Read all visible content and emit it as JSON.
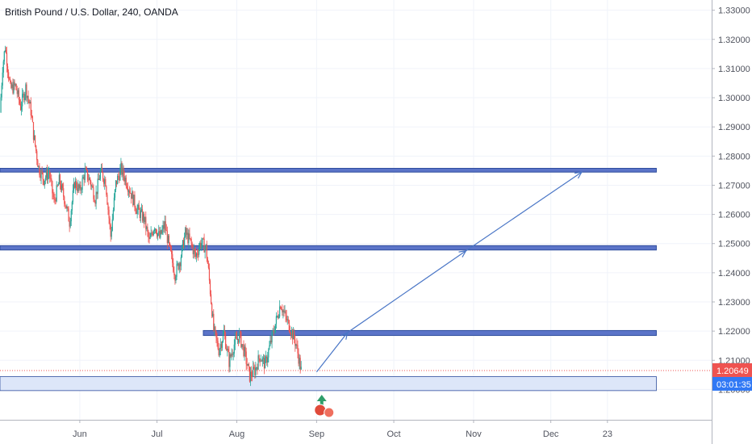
{
  "header": {
    "symbol_title": "British Pound / U.S. Dollar, 240, OANDA"
  },
  "chart_data": {
    "type": "candlestick",
    "title": "British Pound / U.S. Dollar, 240, OANDA",
    "y_axis": {
      "ticks": [
        "1.33000",
        "1.32000",
        "1.31000",
        "1.30000",
        "1.29000",
        "1.28000",
        "1.27000",
        "1.26000",
        "1.25000",
        "1.24000",
        "1.23000",
        "1.22000",
        "1.21000",
        "1.20000"
      ],
      "tick_values": [
        1.33,
        1.32,
        1.31,
        1.3,
        1.29,
        1.28,
        1.27,
        1.26,
        1.25,
        1.24,
        1.23,
        1.22,
        1.21,
        1.2
      ],
      "range": [
        1.1896,
        1.3335
      ]
    },
    "x_axis": {
      "labels": [
        "Jun",
        "Jul",
        "Aug",
        "Sep",
        "Oct",
        "Nov",
        "Dec",
        "23"
      ],
      "label_days": [
        31,
        61,
        92,
        123,
        153,
        184,
        214,
        236
      ]
    },
    "price_label": {
      "value": "1.20649",
      "price": 1.20649,
      "color": "#ef5350"
    },
    "countdown_label": {
      "value": "03:01:35",
      "color": "#3179f5"
    },
    "price_path": [
      [
        0,
        1.295
      ],
      [
        1,
        1.3105
      ],
      [
        2,
        1.3175
      ],
      [
        3,
        1.3105
      ],
      [
        4,
        1.303
      ],
      [
        6,
        1.304
      ],
      [
        8,
        1.297
      ],
      [
        10,
        1.3035
      ],
      [
        12,
        1.2955
      ],
      [
        13,
        1.2875
      ],
      [
        15,
        1.276
      ],
      [
        17,
        1.272
      ],
      [
        19,
        1.2745
      ],
      [
        21,
        1.264
      ],
      [
        23,
        1.2715
      ],
      [
        25,
        1.2655
      ],
      [
        27,
        1.2575
      ],
      [
        29,
        1.271
      ],
      [
        31,
        1.268
      ],
      [
        33,
        1.2745
      ],
      [
        35,
        1.2715
      ],
      [
        37,
        1.2655
      ],
      [
        39,
        1.2745
      ],
      [
        41,
        1.2715
      ],
      [
        43,
        1.2525
      ],
      [
        45,
        1.2705
      ],
      [
        47,
        1.2755
      ],
      [
        49,
        1.2715
      ],
      [
        51,
        1.267
      ],
      [
        53,
        1.262
      ],
      [
        56,
        1.2585
      ],
      [
        58,
        1.2505
      ],
      [
        60,
        1.2565
      ],
      [
        62,
        1.252
      ],
      [
        64,
        1.2565
      ],
      [
        66,
        1.2475
      ],
      [
        68,
        1.2395
      ],
      [
        70,
        1.2445
      ],
      [
        72,
        1.2535
      ],
      [
        74,
        1.2505
      ],
      [
        76,
        1.2455
      ],
      [
        78,
        1.2505
      ],
      [
        80,
        1.2485
      ],
      [
        81,
        1.2405
      ],
      [
        83,
        1.2205
      ],
      [
        85,
        1.2135
      ],
      [
        87,
        1.2195
      ],
      [
        89,
        1.2095
      ],
      [
        91,
        1.2155
      ],
      [
        93,
        1.2185
      ],
      [
        95,
        1.2125
      ],
      [
        97,
        1.2045
      ],
      [
        99,
        1.2065
      ],
      [
        101,
        1.2115
      ],
      [
        103,
        1.2085
      ],
      [
        105,
        1.2155
      ],
      [
        107,
        1.2225
      ],
      [
        109,
        1.2295
      ],
      [
        111,
        1.2245
      ],
      [
        113,
        1.2205
      ],
      [
        115,
        1.2155
      ],
      [
        117,
        1.2065
      ]
    ],
    "zones": [
      {
        "name": "resistance-zone-top",
        "low": 1.2745,
        "high": 1.2758,
        "from_day": 0,
        "to_day": 255
      },
      {
        "name": "resistance-zone-mid",
        "low": 1.2478,
        "high": 1.2493,
        "from_day": 0,
        "to_day": 255
      },
      {
        "name": "resistance-zone-low",
        "low": 1.2185,
        "high": 1.2202,
        "from_day": 79,
        "to_day": 255
      },
      {
        "name": "support-zone",
        "low": 1.1996,
        "high": 1.2044,
        "from_day": 0,
        "to_day": 255,
        "light": true
      }
    ],
    "projection_arrow": [
      [
        123,
        1.206
      ],
      [
        135,
        1.2195
      ],
      [
        181,
        1.2475
      ],
      [
        226,
        1.2745
      ]
    ],
    "colors": {
      "zone": "#5b74c8",
      "zone_stroke": "#2f4e9e",
      "support": "#dde6f9",
      "arrow": "#4a76c6",
      "up": "#26a69a",
      "down": "#ef5350"
    },
    "grid": true
  }
}
